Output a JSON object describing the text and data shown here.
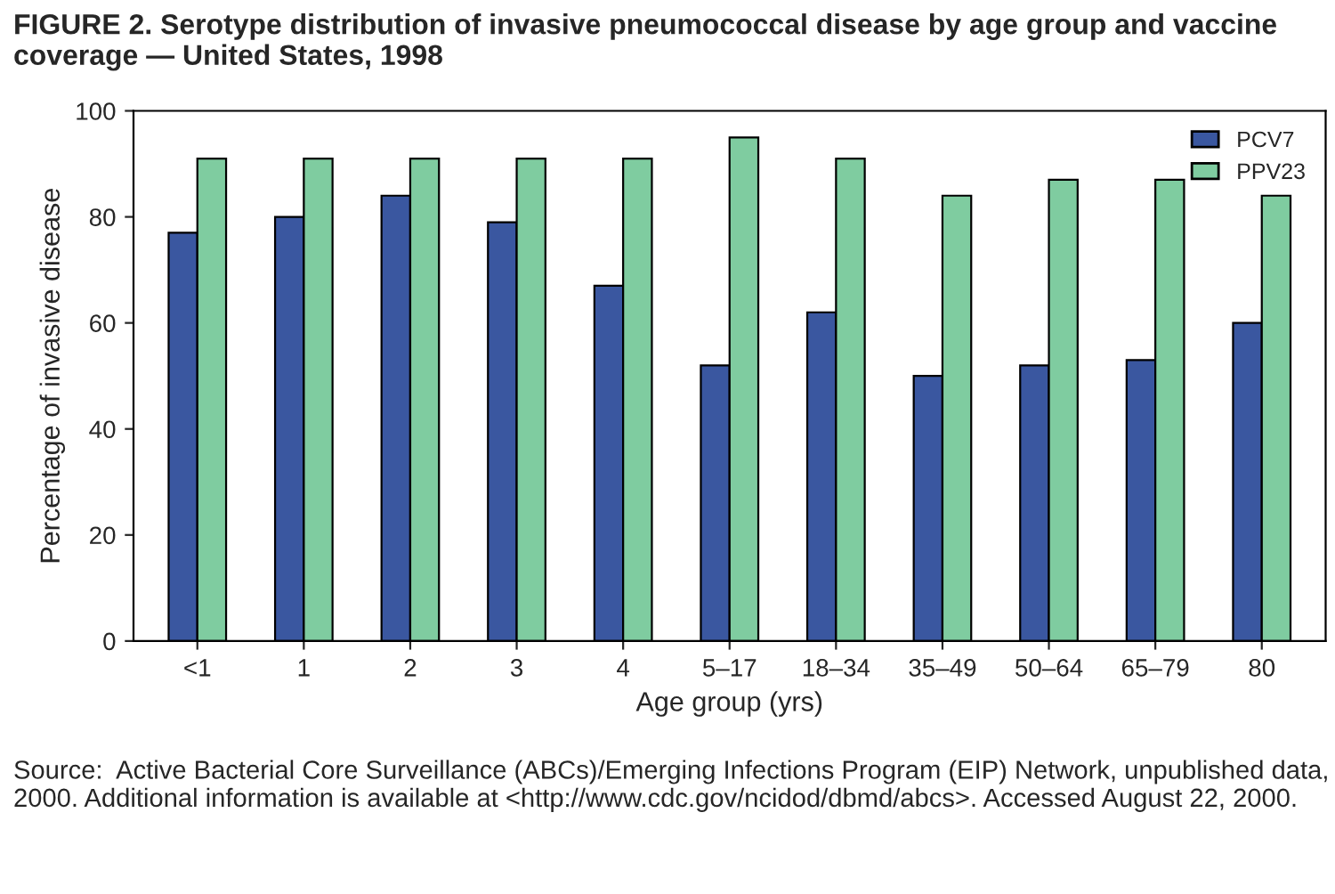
{
  "chart_data": {
    "type": "bar",
    "title": "FIGURE 2. Serotype distribution of invasive pneumococcal disease by age group and vaccine coverage — United States, 1998",
    "xlabel": "Age group (yrs)",
    "ylabel": "Percentage of invasive disease",
    "categories": [
      "<1",
      "1",
      "2",
      "3",
      "4",
      "5–17",
      "18–34",
      "35–49",
      "50–64",
      "65–79",
      "80"
    ],
    "series": [
      {
        "name": "PCV7",
        "color": "#3a57a0",
        "values": [
          77,
          80,
          84,
          79,
          67,
          52,
          62,
          50,
          52,
          53,
          60
        ]
      },
      {
        "name": "PPV23",
        "color": "#7fcca0",
        "values": [
          91,
          91,
          91,
          91,
          91,
          95,
          91,
          84,
          87,
          87,
          84
        ]
      }
    ],
    "ylim": [
      0,
      100
    ],
    "yticks": [
      0,
      20,
      40,
      60,
      80,
      100
    ],
    "grid": false,
    "legend": "top right",
    "annotations": [
      "Source:  Active Bacterial Core Surveillance (ABCs)/Emerging Infections Program (EIP) Network, unpublished data, 2000. Additional information is available at <http://www.cdc.gov/ncidod/dbmd/abcs>. Accessed August 22, 2000."
    ]
  }
}
